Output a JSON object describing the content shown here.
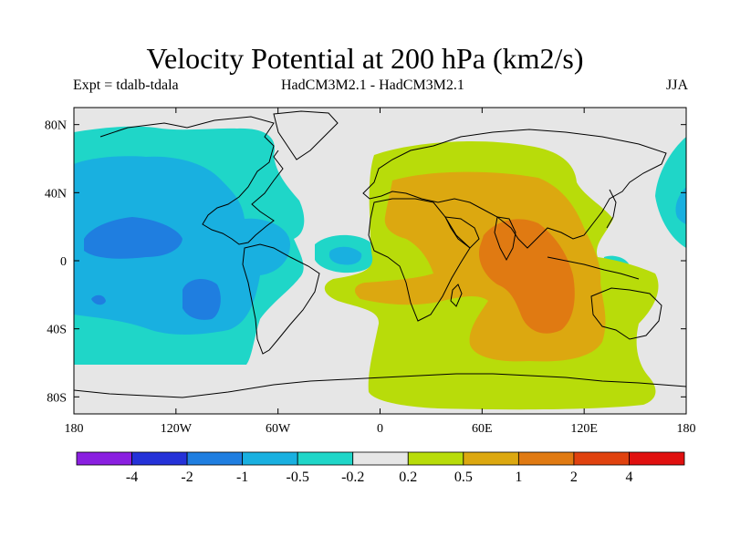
{
  "title": "Velocity Potential at 200 hPa (km2/s)",
  "subtitle_left": "Expt = tdalb-tdala",
  "subtitle_center": "HadCM3M2.1 - HadCM3M2.1",
  "subtitle_right": "JJA",
  "map": {
    "lon_range": [
      -180,
      180
    ],
    "lat_range": [
      -90,
      90
    ],
    "x_ticks": [
      {
        "lon": -180,
        "label": "180"
      },
      {
        "lon": -120,
        "label": "120W"
      },
      {
        "lon": -60,
        "label": "60W"
      },
      {
        "lon": 0,
        "label": "0"
      },
      {
        "lon": 60,
        "label": "60E"
      },
      {
        "lon": 120,
        "label": "120E"
      },
      {
        "lon": 180,
        "label": "180"
      }
    ],
    "y_ticks": [
      {
        "lat": 80,
        "label": "80N"
      },
      {
        "lat": 40,
        "label": "40N"
      },
      {
        "lat": 0,
        "label": "0"
      },
      {
        "lat": -40,
        "label": "40S"
      },
      {
        "lat": -80,
        "label": "80S"
      }
    ],
    "background_color": "#e6e6e6"
  },
  "colorbar": {
    "colors": [
      "#8a1fe0",
      "#2532d8",
      "#1f7ee0",
      "#19b0e0",
      "#1fd6c8",
      "#e6e6e6",
      "#b8dc0a",
      "#dca810",
      "#e07a12",
      "#e0420f",
      "#e0100f"
    ],
    "labels": [
      "-4",
      "-2",
      "-1",
      "-0.5",
      "-0.2",
      "0.2",
      "0.5",
      "1",
      "2",
      "4"
    ]
  },
  "regions": [
    {
      "name": "neg-pacific-atlantic-outer",
      "level": "-0.5 to -0.2",
      "color": "#1fd6c8"
    },
    {
      "name": "neg-pacific-core",
      "level": "-1 to -0.5",
      "color": "#19b0e0"
    },
    {
      "name": "neg-pacific-minimum",
      "level": "-2 to -1",
      "color": "#1f7ee0"
    },
    {
      "name": "neg-west-pacific",
      "level": "-0.5 to -0.2",
      "color": "#1fd6c8"
    },
    {
      "name": "pos-eastern-hemisphere",
      "level": "0.2 to 0.5",
      "color": "#b8dc0a"
    },
    {
      "name": "pos-asia-indian-ocean",
      "level": "0.5 to 1",
      "color": "#dca810"
    },
    {
      "name": "pos-indian-ocean-maximum",
      "level": "1 to 2",
      "color": "#e07a12"
    }
  ]
}
